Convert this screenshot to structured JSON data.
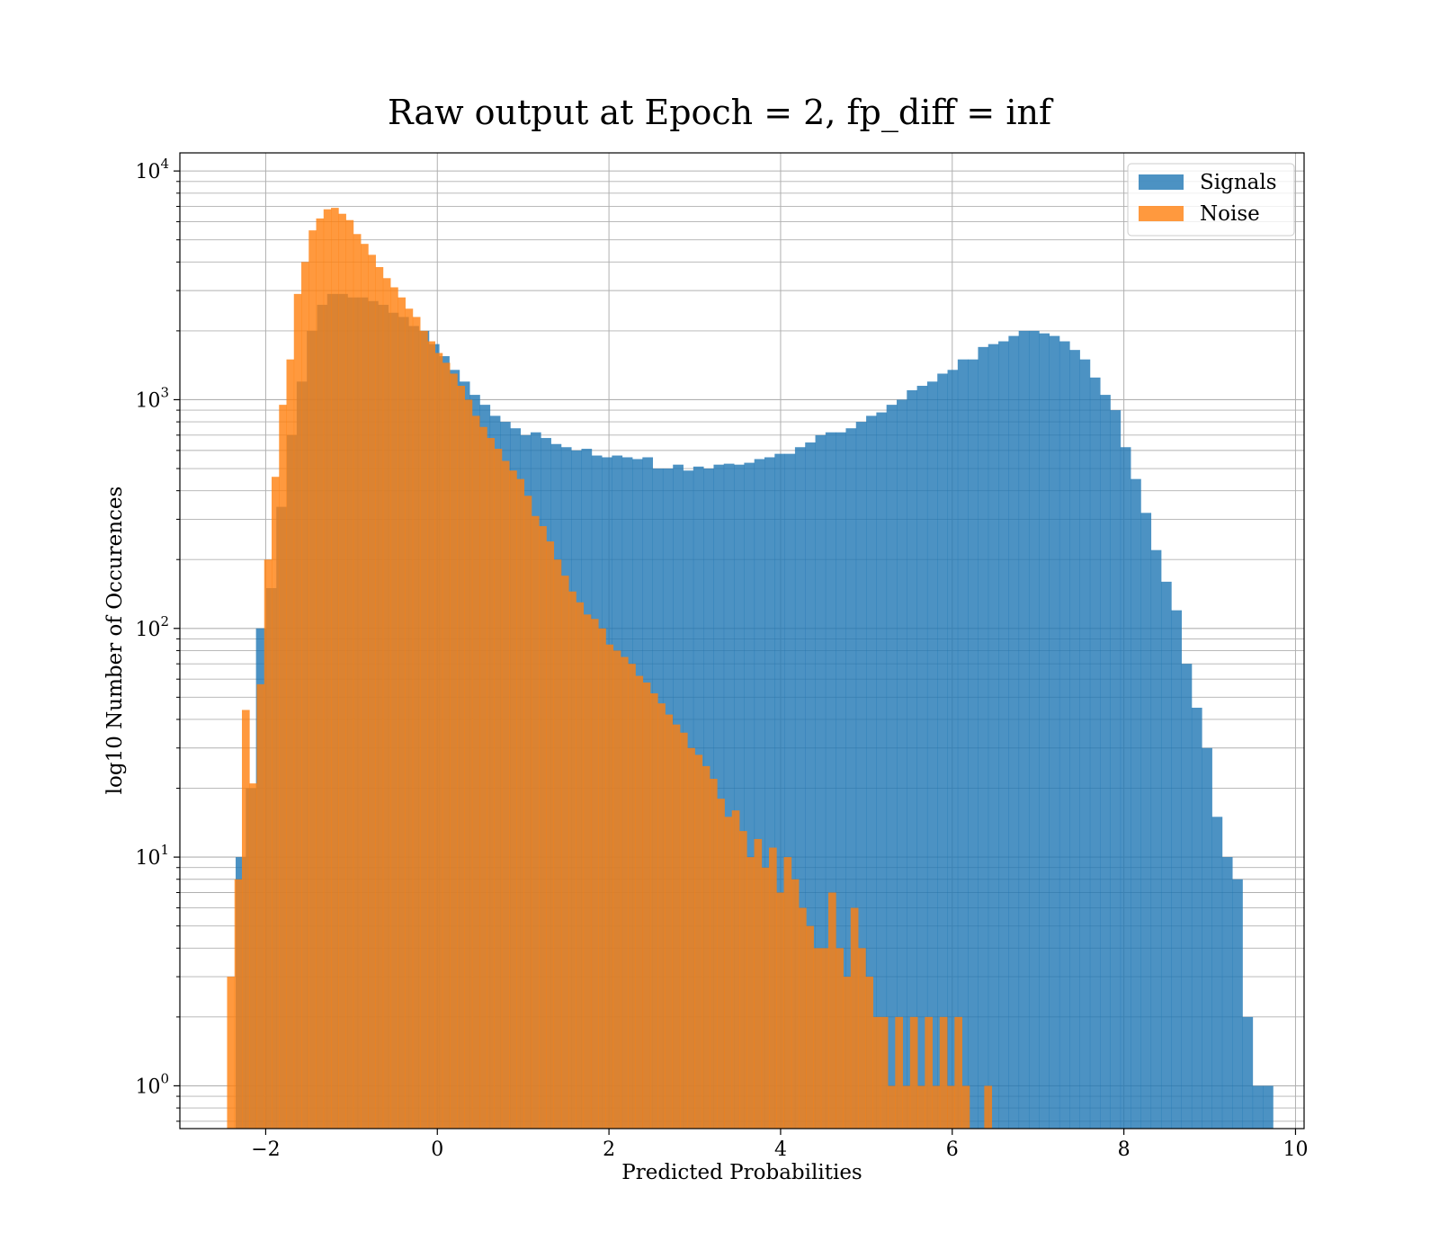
{
  "chart_data": {
    "type": "bar",
    "title": "Raw output at Epoch = 2, fp_diff = inf",
    "xlabel": "Predicted Probabilities",
    "ylabel": "log10 Number of Occurences",
    "xlim": [
      -3,
      10.1
    ],
    "ylim": [
      0.65,
      12000
    ],
    "y_scale": "log",
    "grid": true,
    "legend_position": "top-right",
    "x_ticks": [
      -2,
      0,
      2,
      4,
      6,
      8,
      10
    ],
    "x_tick_labels": [
      "−2",
      "0",
      "2",
      "4",
      "6",
      "8",
      "10"
    ],
    "y_ticks": [
      1,
      10,
      100,
      1000,
      10000
    ],
    "y_tick_labels": [
      {
        "base": "10",
        "exp": "0"
      },
      {
        "base": "10",
        "exp": "1"
      },
      {
        "base": "10",
        "exp": "2"
      },
      {
        "base": "10",
        "exp": "3"
      },
      {
        "base": "10",
        "exp": "4"
      }
    ],
    "series": [
      {
        "name": "Signals",
        "color": "#1f77b4",
        "bin_start": -2.35,
        "bin_width": 0.1185,
        "values": [
          10,
          20,
          100,
          150,
          340,
          700,
          1200,
          2000,
          2600,
          2900,
          2900,
          2800,
          2800,
          2700,
          2600,
          2400,
          2300,
          2100,
          2000,
          1750,
          1550,
          1350,
          1200,
          1050,
          950,
          850,
          800,
          750,
          700,
          720,
          680,
          640,
          620,
          600,
          610,
          570,
          560,
          570,
          560,
          550,
          560,
          500,
          500,
          520,
          490,
          510,
          500,
          520,
          525,
          520,
          530,
          550,
          560,
          580,
          580,
          620,
          650,
          700,
          720,
          720,
          750,
          800,
          850,
          880,
          950,
          1000,
          1100,
          1150,
          1200,
          1300,
          1350,
          1500,
          1500,
          1700,
          1750,
          1800,
          1900,
          2000,
          2000,
          1950,
          1900,
          1800,
          1650,
          1500,
          1250,
          1050,
          900,
          620,
          450,
          320,
          220,
          160,
          120,
          70,
          45,
          30,
          15,
          10,
          8,
          2,
          1,
          1
        ]
      },
      {
        "name": "Noise",
        "color": "#ff7f0e",
        "bin_start": -2.45,
        "bin_width": 0.0865,
        "values": [
          3,
          8,
          44,
          21,
          57,
          200,
          460,
          950,
          1500,
          2900,
          4000,
          5500,
          6200,
          6800,
          6900,
          6500,
          6100,
          5300,
          4800,
          4300,
          3800,
          3400,
          3100,
          2800,
          2500,
          2300,
          2000,
          1800,
          1600,
          1450,
          1300,
          1150,
          1000,
          850,
          760,
          680,
          610,
          540,
          490,
          450,
          380,
          310,
          280,
          240,
          200,
          170,
          145,
          130,
          115,
          110,
          100,
          85,
          80,
          75,
          70,
          62,
          58,
          52,
          47,
          42,
          38,
          35,
          30,
          28,
          25,
          22,
          18,
          15,
          16,
          13,
          10,
          12,
          9,
          11,
          7,
          10,
          8,
          6,
          5,
          4,
          4,
          7,
          4,
          3,
          6,
          4,
          3,
          2,
          2,
          1,
          2,
          1,
          2,
          1,
          2,
          1,
          2,
          1,
          2,
          1,
          0,
          0,
          1
        ]
      }
    ]
  }
}
